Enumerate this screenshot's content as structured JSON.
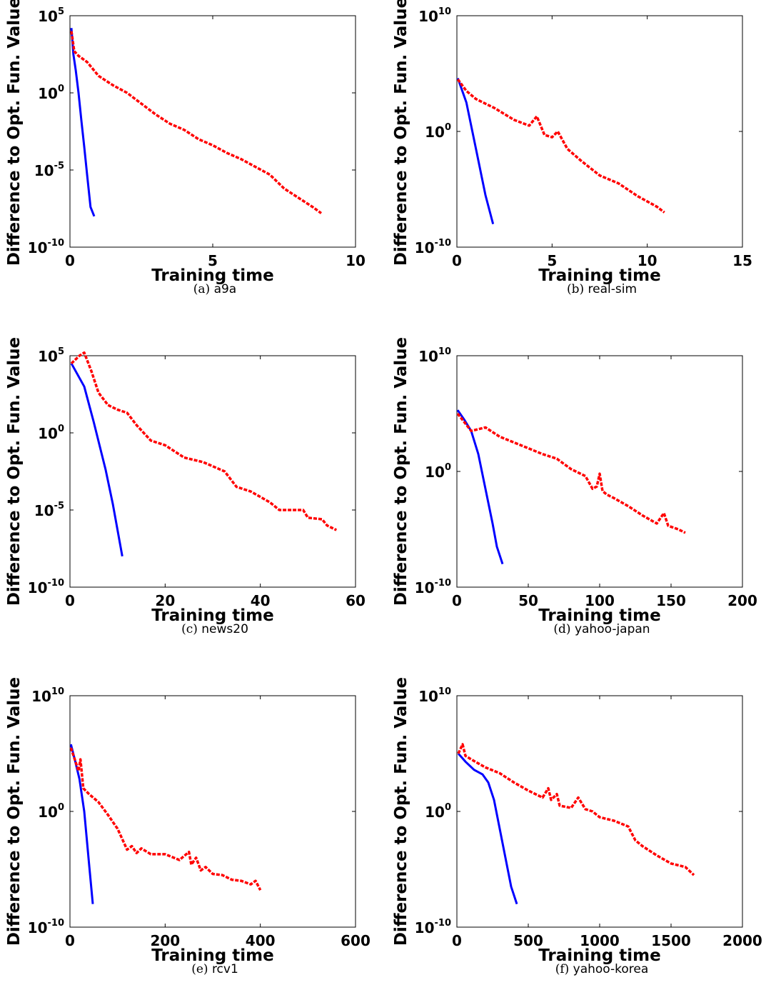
{
  "chart_data": [
    {
      "type": "line",
      "caption_index": "(a)",
      "caption_name": "a9a",
      "xlabel": "Training time",
      "ylabel": "Difference to Opt. Fun. Value",
      "yscale": "log",
      "xlim": [
        0,
        10
      ],
      "xticks": [
        0,
        5,
        10
      ],
      "ylim_exp": [
        -10,
        5
      ],
      "yticks_exp": [
        -10,
        -5,
        0,
        5
      ],
      "series": [
        {
          "color": "#0000ff",
          "style": "solid",
          "x": [
            0.05,
            0.12,
            0.2,
            0.3,
            0.4,
            0.5,
            0.6,
            0.72,
            0.85
          ],
          "log10_y": [
            4.2,
            2.5,
            1.5,
            0.0,
            -1.8,
            -3.5,
            -5.3,
            -7.4,
            -8.0
          ]
        },
        {
          "color": "#ff0000",
          "style": "dotted",
          "x": [
            0.05,
            0.15,
            0.3,
            0.6,
            1.0,
            1.5,
            2.0,
            2.5,
            3.0,
            3.5,
            4.0,
            4.5,
            5.0,
            5.5,
            6.0,
            6.5,
            7.0,
            7.5,
            8.0,
            8.5,
            8.8
          ],
          "log10_y": [
            4.0,
            2.7,
            2.4,
            2.0,
            1.1,
            0.5,
            0.0,
            -0.7,
            -1.4,
            -2.0,
            -2.4,
            -3.0,
            -3.4,
            -3.9,
            -4.3,
            -4.8,
            -5.3,
            -6.2,
            -6.8,
            -7.4,
            -7.8
          ]
        }
      ]
    },
    {
      "type": "line",
      "caption_index": "(b)",
      "caption_name": "real-sim",
      "xlabel": "Training time",
      "ylabel": "Difference to Opt. Fun. Value",
      "yscale": "log",
      "xlim": [
        0,
        15
      ],
      "xticks": [
        0,
        5,
        10,
        15
      ],
      "ylim_exp": [
        -10,
        10
      ],
      "yticks_exp": [
        -10,
        0,
        10
      ],
      "series": [
        {
          "color": "#0000ff",
          "style": "solid",
          "x": [
            0.05,
            0.5,
            1.0,
            1.5,
            1.9
          ],
          "log10_y": [
            4.6,
            2.5,
            -1.5,
            -5.5,
            -8.0
          ]
        },
        {
          "color": "#ff0000",
          "style": "dotted",
          "x": [
            0.05,
            0.5,
            1.0,
            2.0,
            3.0,
            3.8,
            4.2,
            4.6,
            5.0,
            5.3,
            5.8,
            6.5,
            7.5,
            8.5,
            9.5,
            10.5,
            10.9
          ],
          "log10_y": [
            4.5,
            3.5,
            2.8,
            2.0,
            1.0,
            0.5,
            1.3,
            -0.3,
            -0.5,
            0.0,
            -1.5,
            -2.5,
            -3.8,
            -4.5,
            -5.6,
            -6.5,
            -7.0
          ]
        }
      ]
    },
    {
      "type": "line",
      "caption_index": "(c)",
      "caption_name": "news20",
      "xlabel": "Training time",
      "ylabel": "Difference to Opt. Fun. Value",
      "yscale": "log",
      "xlim": [
        0,
        60
      ],
      "xticks": [
        0,
        20,
        40,
        60
      ],
      "ylim_exp": [
        -10,
        5
      ],
      "yticks_exp": [
        -10,
        -5,
        0,
        5
      ],
      "series": [
        {
          "color": "#0000ff",
          "style": "solid",
          "x": [
            0.3,
            3.0,
            5.0,
            7.5,
            9.0,
            11.0
          ],
          "log10_y": [
            4.5,
            3.0,
            0.7,
            -2.4,
            -4.6,
            -8.0
          ]
        },
        {
          "color": "#ff0000",
          "style": "dotted",
          "x": [
            0.3,
            2.0,
            3.0,
            4.5,
            6.0,
            8.0,
            10.0,
            12.0,
            14.0,
            17.0,
            20.0,
            24.0,
            28.0,
            31.0,
            32.5,
            35.0,
            38.0,
            42.0,
            44.0,
            47.0,
            49.0,
            50.0,
            53.0,
            54.0,
            56.0
          ],
          "log10_y": [
            4.5,
            5.0,
            5.2,
            4.0,
            2.6,
            1.8,
            1.5,
            1.3,
            0.5,
            -0.5,
            -0.8,
            -1.6,
            -1.9,
            -2.3,
            -2.5,
            -3.5,
            -3.8,
            -4.5,
            -5.0,
            -5.0,
            -5.0,
            -5.5,
            -5.6,
            -6.0,
            -6.3
          ]
        }
      ]
    },
    {
      "type": "line",
      "caption_index": "(d)",
      "caption_name": "yahoo-japan",
      "xlabel": "Training time",
      "ylabel": "Difference to Opt. Fun. Value",
      "yscale": "log",
      "xlim": [
        0,
        200
      ],
      "xticks": [
        0,
        50,
        100,
        150,
        200
      ],
      "ylim_exp": [
        -10,
        10
      ],
      "yticks_exp": [
        -10,
        0,
        10
      ],
      "series": [
        {
          "color": "#0000ff",
          "style": "solid",
          "x": [
            0.5,
            5.0,
            10.0,
            15.0,
            20.0,
            25.0,
            28.0,
            32.0
          ],
          "log10_y": [
            5.3,
            4.5,
            3.5,
            1.5,
            -1.5,
            -4.5,
            -6.5,
            -8.0
          ]
        },
        {
          "color": "#ff0000",
          "style": "dotted",
          "x": [
            0.5,
            10.0,
            20.0,
            30.0,
            40.0,
            50.0,
            60.0,
            70.0,
            80.0,
            90.0,
            95.0,
            98.0,
            100.0,
            102.0,
            105.0,
            110.0,
            120.0,
            130.0,
            140.0,
            145.0,
            148.0,
            155.0,
            160.0
          ],
          "log10_y": [
            5.0,
            3.5,
            3.8,
            3.0,
            2.5,
            2.0,
            1.5,
            1.1,
            0.2,
            -0.4,
            -1.5,
            -1.3,
            -0.2,
            -1.7,
            -2.0,
            -2.3,
            -3.0,
            -3.8,
            -4.5,
            -3.6,
            -4.7,
            -5.0,
            -5.3
          ]
        }
      ]
    },
    {
      "type": "line",
      "caption_index": "(e)",
      "caption_name": "rcv1",
      "xlabel": "Training time",
      "ylabel": "Difference to Opt. Fun. Value",
      "yscale": "log",
      "xlim": [
        0,
        600
      ],
      "xticks": [
        0,
        200,
        400,
        600
      ],
      "ylim_exp": [
        -10,
        10
      ],
      "yticks_exp": [
        -10,
        0,
        10
      ],
      "series": [
        {
          "color": "#0000ff",
          "style": "solid",
          "x": [
            2.0,
            10.0,
            20.0,
            30.0,
            40.0,
            48.0
          ],
          "log10_y": [
            5.8,
            4.5,
            2.8,
            0.0,
            -4.5,
            -8.0
          ]
        },
        {
          "color": "#ff0000",
          "style": "dotted",
          "x": [
            2.0,
            10.0,
            18.0,
            22.0,
            28.0,
            40.0,
            60.0,
            80.0,
            100.0,
            120.0,
            130.0,
            140.0,
            150.0,
            170.0,
            200.0,
            230.0,
            250.0,
            255.0,
            265.0,
            275.0,
            285.0,
            300.0,
            320.0,
            340.0,
            360.0,
            380.0,
            390.0,
            400.0
          ],
          "log10_y": [
            5.5,
            4.5,
            3.5,
            4.5,
            2.0,
            1.5,
            0.8,
            -0.3,
            -1.5,
            -3.3,
            -3.0,
            -3.6,
            -3.2,
            -3.7,
            -3.7,
            -4.2,
            -3.5,
            -4.6,
            -4.0,
            -5.1,
            -4.8,
            -5.4,
            -5.5,
            -5.9,
            -6.0,
            -6.3,
            -6.0,
            -6.8
          ]
        }
      ]
    },
    {
      "type": "line",
      "caption_index": "(f)",
      "caption_name": "yahoo-korea",
      "xlabel": "Training time",
      "ylabel": "Difference to Opt. Fun. Value",
      "yscale": "log",
      "xlim": [
        0,
        2000
      ],
      "xticks": [
        0,
        500,
        1000,
        1500,
        2000
      ],
      "ylim_exp": [
        -10,
        10
      ],
      "yticks_exp": [
        -10,
        0,
        10
      ],
      "series": [
        {
          "color": "#0000ff",
          "style": "solid",
          "x": [
            10.0,
            60.0,
            120.0,
            180.0,
            220.0,
            260.0,
            300.0,
            340.0,
            380.0,
            420.0
          ],
          "log10_y": [
            5.0,
            4.3,
            3.6,
            3.2,
            2.5,
            1.0,
            -1.5,
            -4.0,
            -6.5,
            -8.0
          ]
        },
        {
          "color": "#ff0000",
          "style": "dotted",
          "x": [
            10.0,
            40.0,
            60.0,
            100.0,
            200.0,
            300.0,
            400.0,
            500.0,
            600.0,
            640.0,
            660.0,
            700.0,
            720.0,
            800.0,
            850.0,
            900.0,
            950.0,
            1000.0,
            1100.0,
            1200.0,
            1250.0,
            1300.0,
            1400.0,
            1500.0,
            1600.0,
            1660.0
          ],
          "log10_y": [
            5.0,
            5.8,
            4.8,
            4.5,
            3.8,
            3.3,
            2.5,
            1.8,
            1.2,
            2.0,
            1.0,
            1.5,
            0.5,
            0.3,
            1.2,
            0.2,
            0.0,
            -0.5,
            -0.8,
            -1.3,
            -2.5,
            -3.0,
            -3.8,
            -4.5,
            -4.8,
            -5.5
          ]
        }
      ]
    }
  ]
}
